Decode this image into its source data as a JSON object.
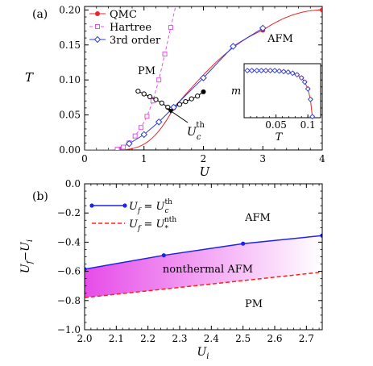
{
  "colors": {
    "qmc": "#e8262a",
    "hartree": "#e455e2",
    "third": "#2b3fd6",
    "black": "#000000",
    "uth": "#1f22e8",
    "unth": "#ff1e1e",
    "fill_left": "#e64ce8",
    "fill_right": "#ffffff"
  },
  "chart_data": [
    {
      "type": "line",
      "panel_label": "(a)",
      "xlabel": "U",
      "ylabel": "T",
      "xlim": [
        0,
        4
      ],
      "ylim": [
        0,
        0.205
      ],
      "x_ticks": [
        "0",
        "1",
        "2",
        "3",
        "4"
      ],
      "y_ticks": [
        "0.00",
        "0.05",
        "0.10",
        "0.15",
        "0.20"
      ],
      "legend_position": "top-left",
      "series": [
        {
          "name": "QMC",
          "marker": "filled-circle",
          "line": "solid",
          "x": [
            1.5,
            3,
            4
          ],
          "y": [
            0.06,
            0.171,
            0.2
          ]
        },
        {
          "name": "Hartree",
          "marker": "open-square",
          "line": "dashed",
          "x": [
            0.55,
            0.65,
            0.75,
            0.85,
            0.95,
            1.05,
            1.15,
            1.25,
            1.35,
            1.45
          ],
          "y": [
            0.001,
            0.004,
            0.01,
            0.02,
            0.032,
            0.048,
            0.07,
            0.1,
            0.137,
            0.175
          ]
        },
        {
          "name": "3rd order",
          "marker": "open-diamond",
          "line": "solid",
          "x": [
            0.75,
            1,
            1.25,
            1.5,
            2,
            2.5,
            3
          ],
          "y": [
            0.009,
            0.022,
            0.04,
            0.061,
            0.103,
            0.148,
            0.174
          ]
        },
        {
          "name": "",
          "marker": "open-circle",
          "line": "solid",
          "x": [
            0.9,
            1.0,
            1.1,
            1.2,
            1.3,
            1.4,
            1.5,
            1.6,
            1.7,
            1.8,
            1.9
          ],
          "y": [
            0.084,
            0.08,
            0.076,
            0.072,
            0.067,
            0.061,
            0.061,
            0.065,
            0.069,
            0.073,
            0.077
          ]
        }
      ],
      "endpoint_marker": {
        "x": 2.0,
        "y": 0.083
      },
      "annotations": [
        {
          "text": "AFM",
          "x": 3.25,
          "y": 0.168
        },
        {
          "text": "PM",
          "x": 1.0,
          "y": 0.12
        },
        {
          "text": "U",
          "sup": "th",
          "sub": "c",
          "x": 1.75,
          "y": 0.026,
          "arrow_to_x": 1.38,
          "arrow_to_y": 0.054
        }
      ],
      "inset": {
        "xlabel": "T",
        "ylabel": "m",
        "xlim": [
          0,
          0.12
        ],
        "x_ticks": [
          "0.05",
          "0.1"
        ],
        "x": [
          0.005,
          0.012,
          0.02,
          0.027,
          0.034,
          0.041,
          0.048,
          0.055,
          0.062,
          0.069,
          0.076,
          0.083,
          0.09,
          0.095,
          0.1,
          0.104,
          0.107
        ],
        "y": [
          0.9,
          0.9,
          0.9,
          0.9,
          0.9,
          0.9,
          0.9,
          0.89,
          0.88,
          0.87,
          0.85,
          0.82,
          0.76,
          0.68,
          0.55,
          0.35,
          0.02
        ]
      }
    },
    {
      "type": "area",
      "panel_label": "(b)",
      "xlabel": "U_i",
      "ylabel": "U_f-U_i",
      "xlim": [
        2.0,
        2.75
      ],
      "ylim": [
        -1.0,
        0.0
      ],
      "x_ticks": [
        "2.0",
        "2.1",
        "2.2",
        "2.3",
        "2.4",
        "2.5",
        "2.6",
        "2.7"
      ],
      "y_ticks": [
        "0.0",
        "−0.2",
        "−0.4",
        "−0.6",
        "−0.8",
        "−1.0"
      ],
      "legend_position": "top-left",
      "series": [
        {
          "name": "U_f = U_c^th",
          "marker": "filled-circle",
          "line": "solid",
          "x": [
            2.0,
            2.25,
            2.5,
            2.75
          ],
          "y": [
            -0.585,
            -0.49,
            -0.41,
            -0.355
          ]
        },
        {
          "name": "U_f = U_*^nth",
          "marker": "none",
          "line": "dashed",
          "x": [
            2.0,
            2.75
          ],
          "y": [
            -0.78,
            -0.605
          ]
        }
      ],
      "annotations": [
        {
          "text": "AFM",
          "x": 2.53,
          "y": -0.2
        },
        {
          "text": "nonthermal AFM",
          "x": 2.32,
          "y": -0.595
        },
        {
          "text": "PM",
          "x": 2.55,
          "y": -0.8
        }
      ]
    }
  ],
  "legend_a": {
    "qmc": "QMC",
    "hartree": "Hartree",
    "third": "3rd order"
  },
  "legend_b": {
    "uth": "U",
    "uth_sub": "f",
    "uth_eq": " = U",
    "uth_sub2": "c",
    "uth_sup": "th",
    "unth": "U",
    "unth_sub": "f",
    "unth_eq": " = U",
    "unth_sub2": "*",
    "unth_sup": "nth"
  }
}
